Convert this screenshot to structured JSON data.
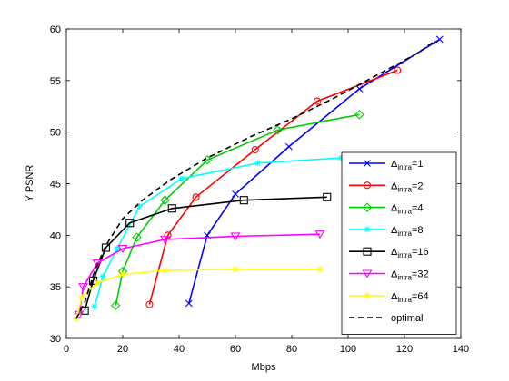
{
  "chart_data": {
    "type": "line",
    "xlabel": "Mbps",
    "ylabel": "Y PSNR",
    "xlim": [
      0,
      140
    ],
    "ylim": [
      30,
      60
    ],
    "xticks": [
      0,
      20,
      40,
      60,
      80,
      100,
      120,
      140
    ],
    "yticks": [
      30,
      35,
      40,
      45,
      50,
      55,
      60
    ],
    "grid": false,
    "legend_position": "lower-right",
    "series": [
      {
        "name": "Δintra=1",
        "label_main": "Δ",
        "label_sub": "intra",
        "label_suffix": "=1",
        "color": "#0000ff",
        "marker": "x",
        "x": [
          43.5,
          50.0,
          60.0,
          79.0,
          104.0,
          132.5
        ],
        "y": [
          33.4,
          40.0,
          44.0,
          48.6,
          54.2,
          59.0
        ]
      },
      {
        "name": "Δintra=2",
        "label_main": "Δ",
        "label_sub": "intra",
        "label_suffix": "=2",
        "color": "#ff0000",
        "marker": "circle",
        "x": [
          29.5,
          36.0,
          46.0,
          67.0,
          89.0,
          117.5
        ],
        "y": [
          33.3,
          40.0,
          43.7,
          48.3,
          53.0,
          56.0
        ]
      },
      {
        "name": "Δintra=4",
        "label_main": "Δ",
        "label_sub": "intra",
        "label_suffix": "=4",
        "color": "#00cc00",
        "marker": "diamond",
        "x": [
          17.5,
          20.0,
          25.0,
          35.0,
          50.0,
          75.0,
          104.0
        ],
        "y": [
          33.2,
          36.5,
          39.8,
          43.4,
          47.3,
          50.2,
          51.7
        ]
      },
      {
        "name": "Δintra=8",
        "label_main": "Δ",
        "label_sub": "intra",
        "label_suffix": "=8",
        "color": "#00ffff",
        "marker": "star",
        "x": [
          10.0,
          13.0,
          18.0,
          26.0,
          41.0,
          68.0,
          97.5
        ],
        "y": [
          33.1,
          36.0,
          38.7,
          42.8,
          45.5,
          47.0,
          47.5
        ]
      },
      {
        "name": "Δintra=16",
        "label_main": "Δ",
        "label_sub": "intra",
        "label_suffix": "=16",
        "color": "#000000",
        "marker": "square",
        "x": [
          6.5,
          9.5,
          14.0,
          22.5,
          37.5,
          63.0,
          92.5
        ],
        "y": [
          32.7,
          35.6,
          38.8,
          41.2,
          42.6,
          43.4,
          43.7
        ]
      },
      {
        "name": "Δintra=32",
        "label_main": "Δ",
        "label_sub": "intra",
        "label_suffix": "=32",
        "color": "#ff00ff",
        "marker": "triangle-down",
        "x": [
          4.5,
          6.0,
          11.0,
          20.0,
          35.0,
          60.0,
          90.0
        ],
        "y": [
          32.3,
          35.0,
          37.3,
          38.7,
          39.6,
          39.9,
          40.1
        ]
      },
      {
        "name": "Δintra=64",
        "label_main": "Δ",
        "label_sub": "intra",
        "label_suffix": "=64",
        "color": "#ffff00",
        "marker": "star",
        "x": [
          3.5,
          5.5,
          11.0,
          20.0,
          35.0,
          60.0,
          90.0
        ],
        "y": [
          31.9,
          34.0,
          35.4,
          36.2,
          36.6,
          36.7,
          36.7
        ]
      },
      {
        "name": "optimal",
        "label_main": "optimal",
        "label_sub": "",
        "label_suffix": "",
        "color": "#000000",
        "marker": "none",
        "dashed": true,
        "x": [
          3.5,
          6.5,
          10.0,
          14.0,
          20.0,
          27.0,
          37.0,
          50.0,
          65.0,
          80.0,
          95.0,
          110.0,
          125.0,
          131.0
        ],
        "y": [
          31.9,
          33.5,
          36.5,
          39.0,
          41.6,
          43.4,
          45.4,
          47.5,
          49.5,
          51.3,
          53.3,
          55.5,
          57.7,
          58.9
        ]
      }
    ]
  }
}
